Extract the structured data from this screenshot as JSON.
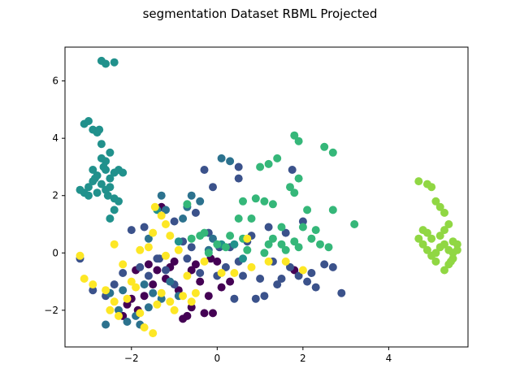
{
  "chart_data": {
    "type": "scatter",
    "title": "segmentation Dataset RBML Projected",
    "xlabel": "",
    "ylabel": "",
    "xlim": [
      -3.55,
      5.85
    ],
    "ylim": [
      -3.28,
      7.18
    ],
    "xticks": [
      -2,
      0,
      2,
      4
    ],
    "yticks": [
      -2,
      0,
      2,
      4,
      6
    ],
    "grid": false,
    "legend": "none",
    "series": [
      {
        "color": "#440154",
        "points": [
          [
            -2.0,
            -1.6
          ],
          [
            -1.85,
            -2.0
          ],
          [
            -1.7,
            -1.5
          ],
          [
            -1.6,
            -0.4
          ],
          [
            -1.4,
            -0.6
          ],
          [
            -1.2,
            -0.9
          ],
          [
            -1.0,
            -0.3
          ],
          [
            -0.9,
            -1.3
          ],
          [
            -0.8,
            -2.3
          ],
          [
            -0.7,
            -2.2
          ],
          [
            -0.6,
            -1.9
          ],
          [
            -0.5,
            -0.4
          ],
          [
            -0.3,
            -2.1
          ],
          [
            -0.2,
            -1.5
          ],
          [
            -0.1,
            -2.1
          ],
          [
            0.0,
            -0.3
          ],
          [
            0.1,
            -1.2
          ],
          [
            0.3,
            -1.0
          ],
          [
            -1.9,
            -0.6
          ],
          [
            -1.5,
            -1.1
          ],
          [
            -0.4,
            -1.0
          ],
          [
            -2.1,
            -1.8
          ],
          [
            -1.3,
            1.6
          ],
          [
            1.8,
            -0.6
          ],
          [
            -0.6,
            -0.6
          ],
          [
            -1.1,
            -0.5
          ],
          [
            -0.15,
            -0.2
          ],
          [
            -2.2,
            -2.2
          ]
        ]
      },
      {
        "color": "#3b528b",
        "points": [
          [
            -3.2,
            -0.2
          ],
          [
            -2.9,
            -1.3
          ],
          [
            -2.6,
            -1.5
          ],
          [
            -2.4,
            -1.1
          ],
          [
            -2.2,
            -0.7
          ],
          [
            -1.8,
            -0.5
          ],
          [
            -1.6,
            -0.8
          ],
          [
            -1.4,
            -0.2
          ],
          [
            -1.2,
            -0.6
          ],
          [
            -1.0,
            -1.1
          ],
          [
            -0.8,
            0.4
          ],
          [
            -0.6,
            0.2
          ],
          [
            -0.4,
            -0.7
          ],
          [
            -0.2,
            0.7
          ],
          [
            0.0,
            -0.8
          ],
          [
            0.2,
            -0.5
          ],
          [
            0.5,
            -0.3
          ],
          [
            0.7,
            0.4
          ],
          [
            0.9,
            -1.6
          ],
          [
            1.1,
            -1.5
          ],
          [
            1.3,
            -0.3
          ],
          [
            1.5,
            -0.9
          ],
          [
            1.7,
            -0.5
          ],
          [
            1.9,
            -0.8
          ],
          [
            2.1,
            -1.0
          ],
          [
            2.3,
            -1.2
          ],
          [
            2.5,
            -0.4
          ],
          [
            2.7,
            -0.5
          ],
          [
            2.9,
            -1.4
          ],
          [
            0.8,
            0.6
          ],
          [
            1.2,
            0.9
          ],
          [
            1.6,
            0.7
          ],
          [
            2.0,
            1.1
          ],
          [
            -2.0,
            0.8
          ],
          [
            -1.7,
            0.9
          ],
          [
            -0.3,
            2.9
          ],
          [
            -0.1,
            2.3
          ],
          [
            0.5,
            3.0
          ],
          [
            0.4,
            -1.6
          ],
          [
            -0.7,
            -0.2
          ],
          [
            0.3,
            0.2
          ],
          [
            -1.0,
            1.1
          ],
          [
            1.0,
            -0.9
          ],
          [
            1.4,
            -1.1
          ],
          [
            0.6,
            -0.8
          ],
          [
            2.2,
            -0.7
          ],
          [
            -0.5,
            1.4
          ],
          [
            1.75,
            2.9
          ],
          [
            0.5,
            2.6
          ],
          [
            -1.35,
            -0.2
          ],
          [
            0.05,
            0.2
          ]
        ]
      },
      {
        "color": "#2c728e",
        "points": [
          [
            -2.5,
            -1.4
          ],
          [
            -2.3,
            -2.0
          ],
          [
            -2.1,
            -2.4
          ],
          [
            -1.9,
            -2.2
          ],
          [
            -1.8,
            -2.5
          ],
          [
            -1.6,
            -1.9
          ],
          [
            -1.5,
            -1.4
          ],
          [
            -1.3,
            -1.6
          ],
          [
            -1.1,
            -1.0
          ],
          [
            -0.9,
            -1.5
          ],
          [
            -0.8,
            1.2
          ],
          [
            -0.6,
            2.0
          ],
          [
            -0.4,
            1.8
          ],
          [
            -0.2,
            0.1
          ],
          [
            -0.1,
            0.5
          ],
          [
            0.1,
            3.3
          ],
          [
            0.3,
            3.2
          ],
          [
            -1.7,
            -1.1
          ],
          [
            -2.6,
            -2.5
          ],
          [
            -1.6,
            0.5
          ],
          [
            -1.3,
            2.0
          ],
          [
            -0.7,
            1.6
          ],
          [
            -1.2,
            1.5
          ],
          [
            -2.2,
            -1.3
          ]
        ]
      },
      {
        "color": "#21918c",
        "points": [
          [
            -3.1,
            4.5
          ],
          [
            -2.9,
            4.3
          ],
          [
            -2.8,
            4.2
          ],
          [
            -2.7,
            3.8
          ],
          [
            -2.7,
            3.3
          ],
          [
            -2.6,
            2.9
          ],
          [
            -2.8,
            2.7
          ],
          [
            -2.9,
            2.5
          ],
          [
            -3.0,
            2.3
          ],
          [
            -3.1,
            2.1
          ],
          [
            -3.2,
            2.2
          ],
          [
            -3.0,
            2.0
          ],
          [
            -2.8,
            2.1
          ],
          [
            -2.6,
            2.2
          ],
          [
            -2.5,
            2.6
          ],
          [
            -2.4,
            2.8
          ],
          [
            -2.3,
            2.9
          ],
          [
            -2.2,
            2.8
          ],
          [
            -2.6,
            3.2
          ],
          [
            -2.5,
            3.5
          ],
          [
            -2.4,
            1.9
          ],
          [
            -2.4,
            1.5
          ],
          [
            -2.5,
            1.2
          ],
          [
            -2.3,
            1.8
          ],
          [
            -2.7,
            6.7
          ],
          [
            -2.6,
            6.6
          ],
          [
            -2.4,
            6.65
          ],
          [
            -3.0,
            4.6
          ],
          [
            -2.75,
            4.3
          ],
          [
            -2.65,
            3.0
          ],
          [
            -2.5,
            2.3
          ],
          [
            -2.9,
            2.9
          ],
          [
            -2.7,
            2.4
          ],
          [
            -1.4,
            1.5
          ],
          [
            -0.9,
            0.4
          ],
          [
            0.1,
            0.3
          ],
          [
            0.4,
            0.3
          ],
          [
            0.6,
            -0.2
          ],
          [
            -2.85,
            2.6
          ],
          [
            -2.55,
            2.0
          ]
        ]
      },
      {
        "color": "#35b779",
        "points": [
          [
            1.8,
            4.1
          ],
          [
            1.9,
            3.9
          ],
          [
            1.4,
            3.3
          ],
          [
            1.2,
            3.1
          ],
          [
            1.0,
            3.0
          ],
          [
            1.9,
            2.6
          ],
          [
            1.8,
            2.1
          ],
          [
            2.5,
            3.7
          ],
          [
            2.7,
            3.5
          ],
          [
            0.6,
            1.8
          ],
          [
            0.9,
            1.9
          ],
          [
            1.1,
            1.8
          ],
          [
            1.3,
            1.7
          ],
          [
            1.7,
            2.3
          ],
          [
            2.1,
            1.5
          ],
          [
            2.7,
            1.5
          ],
          [
            3.2,
            1.0
          ],
          [
            2.0,
            0.9
          ],
          [
            2.2,
            0.5
          ],
          [
            1.5,
            0.3
          ],
          [
            1.3,
            0.5
          ],
          [
            1.1,
            0.0
          ],
          [
            2.4,
            0.3
          ],
          [
            2.6,
            0.2
          ],
          [
            -0.6,
            0.5
          ],
          [
            -0.4,
            0.6
          ],
          [
            -0.2,
            0.0
          ],
          [
            0.0,
            0.3
          ],
          [
            0.3,
            0.6
          ],
          [
            0.6,
            0.5
          ],
          [
            0.7,
            0.1
          ],
          [
            1.6,
            0.1
          ],
          [
            1.8,
            0.4
          ],
          [
            -0.7,
            1.7
          ],
          [
            -0.3,
            0.7
          ],
          [
            0.8,
            1.2
          ],
          [
            1.5,
            0.9
          ],
          [
            2.3,
            0.8
          ],
          [
            1.9,
            0.2
          ],
          [
            1.2,
            0.3
          ],
          [
            0.5,
            1.2
          ],
          [
            0.2,
            0.2
          ]
        ]
      },
      {
        "color": "#90d743",
        "points": [
          [
            4.7,
            2.5
          ],
          [
            4.9,
            2.4
          ],
          [
            5.0,
            2.3
          ],
          [
            5.1,
            1.8
          ],
          [
            5.2,
            1.6
          ],
          [
            5.3,
            1.4
          ],
          [
            5.4,
            1.0
          ],
          [
            4.8,
            0.8
          ],
          [
            4.7,
            0.5
          ],
          [
            4.8,
            0.3
          ],
          [
            4.9,
            0.1
          ],
          [
            5.0,
            -0.1
          ],
          [
            5.1,
            0.0
          ],
          [
            5.2,
            0.2
          ],
          [
            5.3,
            0.3
          ],
          [
            5.4,
            0.1
          ],
          [
            5.5,
            0.4
          ],
          [
            5.6,
            0.3
          ],
          [
            5.5,
            -0.2
          ],
          [
            5.4,
            -0.4
          ],
          [
            5.3,
            -0.6
          ],
          [
            5.1,
            -0.3
          ],
          [
            5.0,
            0.5
          ],
          [
            5.2,
            0.6
          ],
          [
            5.5,
            0.0
          ],
          [
            5.6,
            0.1
          ],
          [
            4.9,
            0.7
          ],
          [
            5.3,
            0.8
          ],
          [
            5.45,
            -0.3
          ]
        ]
      },
      {
        "color": "#fde725",
        "points": [
          [
            -3.2,
            -0.1
          ],
          [
            -3.1,
            -0.9
          ],
          [
            -2.9,
            -1.1
          ],
          [
            -2.6,
            -1.3
          ],
          [
            -2.4,
            -1.7
          ],
          [
            -2.3,
            -2.2
          ],
          [
            -2.1,
            -1.6
          ],
          [
            -1.9,
            -1.2
          ],
          [
            -1.7,
            -2.6
          ],
          [
            -1.5,
            -2.8
          ],
          [
            -1.4,
            -1.8
          ],
          [
            -1.3,
            -1.4
          ],
          [
            -1.1,
            -1.7
          ],
          [
            -1.0,
            -2.0
          ],
          [
            -0.8,
            -1.5
          ],
          [
            -0.6,
            -1.7
          ],
          [
            -1.8,
            0.1
          ],
          [
            -1.6,
            0.2
          ],
          [
            -1.5,
            0.7
          ],
          [
            -1.3,
            1.3
          ],
          [
            -1.2,
            1.0
          ],
          [
            -1.1,
            0.6
          ],
          [
            -0.9,
            0.1
          ],
          [
            -0.3,
            -0.3
          ],
          [
            0.1,
            -0.7
          ],
          [
            0.4,
            -0.7
          ],
          [
            0.8,
            -0.5
          ],
          [
            1.2,
            -0.3
          ],
          [
            1.6,
            -0.3
          ],
          [
            2.0,
            -0.6
          ],
          [
            -2.4,
            0.3
          ],
          [
            -0.7,
            -0.8
          ],
          [
            -1.2,
            -0.1
          ],
          [
            -2.0,
            -1.0
          ],
          [
            0.7,
            0.5
          ],
          [
            -1.45,
            1.6
          ],
          [
            -2.2,
            -0.4
          ],
          [
            -0.5,
            -1.4
          ],
          [
            -1.8,
            -2.1
          ],
          [
            -2.5,
            -2.0
          ]
        ]
      }
    ]
  }
}
